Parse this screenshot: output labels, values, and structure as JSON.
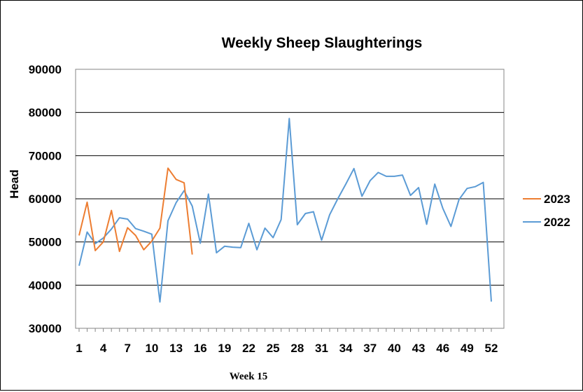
{
  "chart_data": {
    "type": "line",
    "title": "Weekly Sheep Slaughterings",
    "xlabel": "",
    "ylabel": "Head",
    "ylim": [
      30000,
      90000
    ],
    "yticks": [
      "30000",
      "40000",
      "50000",
      "60000",
      "70000",
      "80000",
      "90000"
    ],
    "xticks": [
      "1",
      "4",
      "7",
      "10",
      "13",
      "16",
      "19",
      "22",
      "25",
      "28",
      "31",
      "34",
      "37",
      "40",
      "43",
      "46",
      "49",
      "52"
    ],
    "xlim": [
      1,
      52
    ],
    "grid": "horizontal",
    "legend_position": "right",
    "annotation": "Week 15",
    "series": [
      {
        "name": "2023",
        "color": "#ED7D31",
        "x": [
          1,
          2,
          3,
          4,
          5,
          6,
          7,
          8,
          9,
          10,
          11,
          12,
          13,
          14,
          15
        ],
        "values": [
          51500,
          59200,
          48000,
          50000,
          57300,
          47800,
          53300,
          51500,
          48200,
          50200,
          53200,
          67100,
          64500,
          63700,
          47100
        ]
      },
      {
        "name": "2022",
        "color": "#5B9BD5",
        "x": [
          1,
          2,
          3,
          4,
          5,
          6,
          7,
          8,
          9,
          10,
          11,
          12,
          13,
          14,
          15,
          16,
          17,
          18,
          19,
          20,
          21,
          22,
          23,
          24,
          25,
          26,
          27,
          28,
          29,
          30,
          31,
          32,
          33,
          34,
          35,
          36,
          37,
          38,
          39,
          40,
          41,
          42,
          43,
          44,
          45,
          46,
          47,
          48,
          49,
          50,
          51,
          52
        ],
        "values": [
          44500,
          52300,
          49600,
          50900,
          53000,
          55600,
          55300,
          53100,
          52500,
          51800,
          36100,
          54900,
          59100,
          61900,
          58300,
          49700,
          61100,
          47500,
          49000,
          48800,
          48700,
          54300,
          48200,
          53200,
          51000,
          55200,
          78600,
          54000,
          56600,
          57000,
          50400,
          56300,
          60000,
          63400,
          67000,
          60600,
          64200,
          66100,
          65200,
          65200,
          65500,
          60800,
          62600,
          54100,
          63400,
          57800,
          53600,
          59800,
          62400,
          62800,
          63800,
          36200
        ]
      }
    ]
  }
}
